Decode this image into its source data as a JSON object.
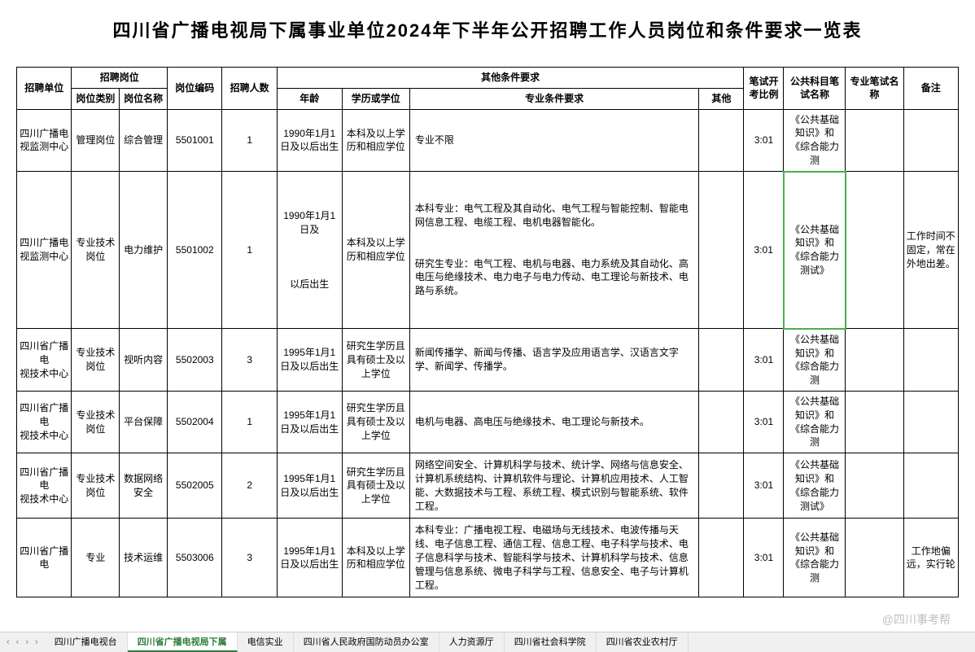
{
  "title": "四川省广播电视局下属事业单位2024年下半年公开招聘工作人员岗位和条件要求一览表",
  "headers": {
    "unit": "招聘单位",
    "position_group": "招聘岗位",
    "type": "岗位类别",
    "name": "岗位名称",
    "code": "岗位编码",
    "count": "招聘人数",
    "other_req_group": "其他条件要求",
    "age": "年龄",
    "edu": "学历或学位",
    "major": "专业条件要求",
    "other": "其他",
    "ratio_group": "笔试开考比例",
    "test1": "公共科目笔试名称",
    "test2": "专业笔试名称",
    "note": "备注"
  },
  "rows": [
    {
      "unit": "四川广播电视监测中心",
      "type": "管理岗位",
      "name": "综合管理",
      "code": "5501001",
      "count": "1",
      "age": "1990年1月1日及以后出生",
      "edu": "本科及以上学历和相应学位",
      "major": "专业不限",
      "other": "",
      "ratio": "3:01",
      "test1": "《公共基础知识》和《综合能力测",
      "test2": "",
      "note": ""
    },
    {
      "unit": "四川广播电视监测中心",
      "type": "专业技术岗位",
      "name": "电力维护",
      "code": "5501002",
      "count": "1",
      "age": "1990年1月1日及\n\n\n\n以后出生",
      "edu": "本科及以上学历和相应学位",
      "major": "本科专业：电气工程及其自动化、电气工程与智能控制、智能电网信息工程、电缆工程、电机电器智能化。\n\n\n研究生专业：电气工程、电机与电器、电力系统及其自动化、高电压与绝缘技术、电力电子与电力传动、电工理论与新技术、电路与系统。",
      "other": "",
      "ratio": "3:01",
      "test1": "《公共基础知识》和《综合能力测试》",
      "test2": "",
      "note": "工作时间不固定，常在外地出差。",
      "highlight": true
    },
    {
      "unit": "四川省广播电\n视技术中心",
      "type": "专业技术岗位",
      "name": "视听内容",
      "code": "5502003",
      "count": "3",
      "age": "1995年1月1日及以后出生",
      "edu": "研究生学历且具有硕士及以上学位",
      "major": "新闻传播学、新闻与传播、语言学及应用语言学、汉语言文字学、新闻学、传播学。",
      "other": "",
      "ratio": "3:01",
      "test1": "《公共基础知识》和《综合能力测",
      "test2": "",
      "note": ""
    },
    {
      "unit": "四川省广播电\n视技术中心",
      "type": "专业技术岗位",
      "name": "平台保障",
      "code": "5502004",
      "count": "1",
      "age": "1995年1月1日及以后出生",
      "edu": "研究生学历且具有硕士及以上学位",
      "major": "电机与电器、高电压与绝缘技术、电工理论与新技术。",
      "other": "",
      "ratio": "3:01",
      "test1": "《公共基础知识》和《综合能力测",
      "test2": "",
      "note": ""
    },
    {
      "unit": "四川省广播电\n视技术中心",
      "type": "专业技术岗位",
      "name": "数据网络安全",
      "code": "5502005",
      "count": "2",
      "age": "1995年1月1日及以后出生",
      "edu": "研究生学历且具有硕士及以上学位",
      "major": "网络空间安全、计算机科学与技术、统计学、网络与信息安全、计算机系统结构、计算机软件与理论、计算机应用技术、人工智能、大数据技术与工程、系统工程、模式识别与智能系统、软件工程。",
      "other": "",
      "ratio": "3:01",
      "test1": "《公共基础知识》和《综合能力测试》",
      "test2": "",
      "note": ""
    },
    {
      "unit": "四川省广播电",
      "type": "专业",
      "name": "技术运维",
      "code": "5503006",
      "count": "3",
      "age": "1995年1月1日及以后出生",
      "edu": "本科及以上学历和相应学位",
      "major": "本科专业：广播电视工程、电磁场与无线技术、电波传播与天线、电子信息工程、通信工程、信息工程、电子科学与技术、电子信息科学与技术、智能科学与技术、计算机科学与技术、信息管理与信息系统、微电子科学与工程、信息安全、电子与计算机工程。",
      "other": "",
      "ratio": "3:01",
      "test1": "《公共基础知识》和《综合能力测",
      "test2": "",
      "note": "工作地偏远，实行轮"
    }
  ],
  "tabs": [
    {
      "label": "四川广播电视台",
      "active": false
    },
    {
      "label": "四川省广播电视局下属",
      "active": true
    },
    {
      "label": "电信实业",
      "active": false
    },
    {
      "label": "四川省人民政府国防动员办公室",
      "active": false
    },
    {
      "label": "人力资源厅",
      "active": false
    },
    {
      "label": "四川省社会科学院",
      "active": false
    },
    {
      "label": "四川省农业农村厅",
      "active": false
    }
  ],
  "watermark": "@四川事考帮"
}
